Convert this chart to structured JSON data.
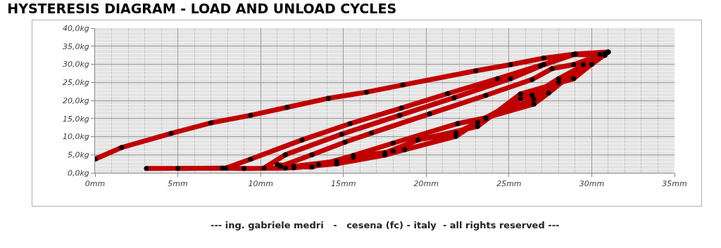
{
  "chart_data": {
    "type": "line",
    "title": "HYSTERESIS DIAGRAM - LOAD AND UNLOAD CYCLES",
    "annotations": [
      "--- ing. gabriele medri   -   cesena (fc) - italy  - all rights reserved ---"
    ],
    "xlim": [
      0,
      35
    ],
    "xticks": [
      {
        "value": 0,
        "label": "0mm"
      },
      {
        "value": 5,
        "label": "5mm"
      },
      {
        "value": 10,
        "label": "10mm"
      },
      {
        "value": 15,
        "label": "15mm"
      },
      {
        "value": 20,
        "label": "20mm"
      },
      {
        "value": 25,
        "label": "25mm"
      },
      {
        "value": 30,
        "label": "30mm"
      },
      {
        "value": 35,
        "label": "35mm"
      }
    ],
    "ylim": [
      0,
      40
    ],
    "yticks": [
      {
        "value": 0,
        "label": "0,0kg"
      },
      {
        "value": 5,
        "label": "5,0kg"
      },
      {
        "value": 10,
        "label": "10,0kg"
      },
      {
        "value": 15,
        "label": "15,0kg"
      },
      {
        "value": 20,
        "label": "20,0kg"
      },
      {
        "value": 25,
        "label": "25,0kg"
      },
      {
        "value": 30,
        "label": "30,0kg"
      },
      {
        "value": 35,
        "label": "35,0kg"
      },
      {
        "value": 40,
        "label": "40,0kg"
      }
    ],
    "grid": true,
    "x": [
      0,
      1.6,
      4.6,
      7.0,
      9.4,
      11.6,
      14.1,
      16.4,
      18.6,
      23.0,
      25.1,
      27.1,
      29.0,
      30.5,
      31.0,
      30.0,
      28.0,
      26.5,
      23.6,
      21.8,
      19.5,
      18.0,
      15.6,
      13.5,
      11.5,
      9.0,
      7.7,
      5.0,
      3.1,
      7.9,
      9.4,
      12.5,
      15.4,
      18.5,
      21.3,
      24.3,
      27.1,
      29.0,
      31.0,
      28.0,
      26.4,
      25.7,
      23.1,
      21.8,
      18.7,
      17.5,
      14.6,
      12.0,
      10.2,
      11.5,
      14.9,
      18.4,
      21.7,
      25.1,
      26.9,
      28.9,
      30.8,
      29.5,
      27.4,
      26.5,
      23.6,
      21.9,
      18.0,
      15.6,
      13.1,
      11.2,
      13.1,
      15.1,
      16.7,
      20.2,
      23.6,
      26.4,
      27.6,
      28.9,
      30.8,
      28.9,
      25.7,
      23.1,
      19.5,
      17.5,
      14.6,
      12.0,
      11.0
    ],
    "series": [
      {
        "color": "#c00000",
        "marker": "none",
        "values": [
          3.8,
          7.0,
          10.9,
          13.8,
          15.9,
          18.1,
          20.6,
          22.3,
          24.3,
          28.2,
          29.9,
          31.7,
          32.8,
          32.7,
          33.4,
          30.0,
          25.0,
          20.4,
          15.0,
          11.0,
          9.1,
          6.0,
          4.3,
          2.3,
          1.3,
          1.2,
          1.3,
          1.2,
          1.2,
          1.3,
          3.8,
          9.1,
          13.6,
          17.9,
          21.9,
          26.0,
          30.0,
          32.8,
          33.4,
          26.0,
          21.5,
          20.5,
          14.0,
          10.1,
          6.4,
          4.9,
          2.5,
          1.4,
          1.3,
          5.0,
          10.7,
          15.9,
          20.8,
          26.0,
          29.5,
          32.7,
          32.5,
          29.9,
          22.1,
          19.0,
          15.2,
          13.6,
          8.2,
          4.8,
          1.6,
          1.8,
          5.0,
          8.5,
          11.0,
          16.3,
          21.4,
          25.8,
          28.8,
          29.9,
          33.0,
          26.0,
          21.8,
          12.8,
          9.1,
          5.5,
          3.2,
          1.8,
          2.3
        ]
      },
      {
        "type": "scatter",
        "color": "#000000",
        "marker": "circle",
        "values": [
          3.8,
          7.0,
          10.9,
          13.8,
          15.9,
          18.1,
          20.6,
          22.3,
          24.3,
          28.2,
          29.9,
          31.7,
          32.8,
          32.7,
          33.4,
          30.0,
          25.0,
          20.4,
          15.0,
          11.0,
          9.1,
          6.0,
          4.3,
          2.3,
          1.3,
          1.2,
          1.3,
          1.2,
          1.2,
          1.3,
          3.8,
          9.1,
          13.6,
          17.9,
          21.9,
          26.0,
          30.0,
          32.8,
          33.4,
          26.0,
          21.5,
          20.5,
          14.0,
          10.1,
          6.4,
          4.9,
          2.5,
          1.4,
          1.3,
          5.0,
          10.7,
          15.9,
          20.8,
          26.0,
          29.5,
          32.7,
          32.5,
          29.9,
          22.1,
          19.0,
          15.2,
          13.6,
          8.2,
          4.8,
          1.6,
          1.8,
          5.0,
          8.5,
          11.0,
          16.3,
          21.4,
          25.8,
          28.8,
          29.9,
          33.0,
          26.0,
          21.8,
          12.8,
          9.1,
          5.5,
          3.2,
          1.8,
          2.3
        ]
      }
    ]
  }
}
